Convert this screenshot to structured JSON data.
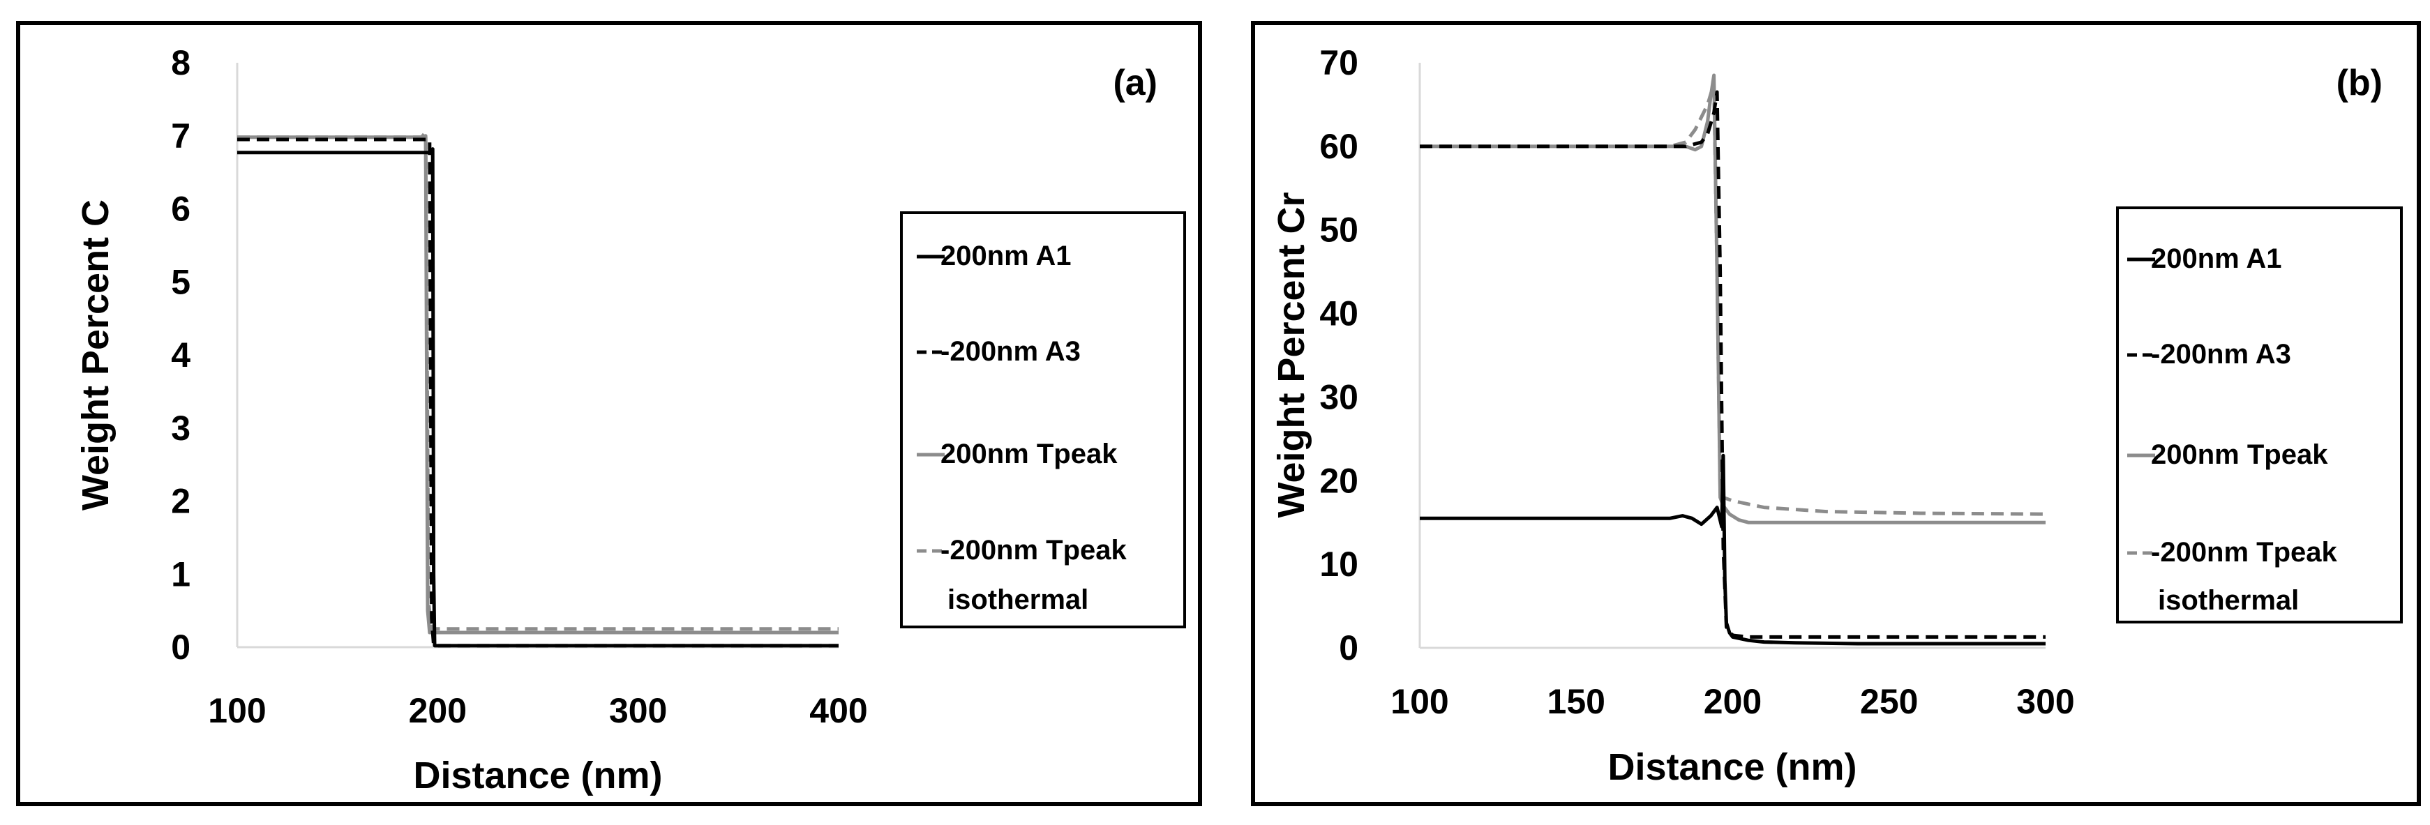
{
  "chart_data": [
    {
      "type": "line",
      "panel_label": "(a)",
      "xlabel": "Distance (nm)",
      "ylabel": "Weight Percent C",
      "xlim": [
        100,
        400
      ],
      "ylim": [
        0,
        8
      ],
      "xticks": [
        100,
        200,
        300,
        400
      ],
      "yticks": [
        0,
        1,
        2,
        3,
        4,
        5,
        6,
        7,
        8
      ],
      "grid": false,
      "legend": "right",
      "series": [
        {
          "name": "200nm A1",
          "style": "solid",
          "color": "#000000",
          "x": [
            100,
            197,
            197.5,
            198,
            198.5,
            400
          ],
          "y": [
            6.77,
            6.77,
            6.82,
            1.0,
            0.02,
            0.02
          ]
        },
        {
          "name": "-200nm A3",
          "style": "dashed",
          "color": "#000000",
          "x": [
            100,
            196,
            197,
            198,
            400
          ],
          "y": [
            6.95,
            6.95,
            0.4,
            0.02,
            0.02
          ]
        },
        {
          "name": "200nm Tpeak",
          "style": "solid",
          "color": "#8c8c8c",
          "x": [
            100,
            192,
            194,
            195,
            196,
            400
          ],
          "y": [
            6.98,
            6.98,
            7.0,
            0.5,
            0.2,
            0.2
          ]
        },
        {
          "name": "-200nm Tpeak isothermal",
          "style": "dashed",
          "color": "#8c8c8c",
          "x": [
            100,
            192,
            194,
            195.5,
            197,
            400
          ],
          "y": [
            6.98,
            6.98,
            7.05,
            0.6,
            0.25,
            0.25
          ]
        }
      ]
    },
    {
      "type": "line",
      "panel_label": "(b)",
      "xlabel": "Distance (nm)",
      "ylabel": "Weight Percent Cr",
      "xlim": [
        100,
        300
      ],
      "ylim": [
        0,
        70
      ],
      "xticks": [
        100,
        150,
        200,
        250,
        300
      ],
      "yticks": [
        0,
        10,
        20,
        30,
        40,
        50,
        60,
        70
      ],
      "grid": false,
      "legend": "right",
      "series": [
        {
          "name": "200nm A1",
          "style": "solid",
          "color": "#000000",
          "x": [
            100,
            180,
            184,
            187,
            190,
            193,
            195,
            196.5,
            197,
            197.5,
            198,
            199,
            200,
            205,
            210,
            220,
            240,
            300
          ],
          "y": [
            15.5,
            15.5,
            15.8,
            15.5,
            14.8,
            15.8,
            16.8,
            14.5,
            23.0,
            8.0,
            3.0,
            1.8,
            1.3,
            0.9,
            0.7,
            0.6,
            0.5,
            0.5
          ]
        },
        {
          "name": "-200nm A3",
          "style": "dashed",
          "color": "#000000",
          "x": [
            100,
            185,
            190,
            192,
            194,
            195,
            196,
            197,
            198,
            200,
            205,
            300
          ],
          "y": [
            60,
            60,
            60.5,
            61.5,
            64,
            66.5,
            45,
            12,
            2.5,
            1.5,
            1.3,
            1.3
          ]
        },
        {
          "name": "200nm Tpeak",
          "style": "solid",
          "color": "#8c8c8c",
          "x": [
            100,
            185,
            188,
            190,
            192,
            193,
            194,
            195,
            196,
            197,
            199,
            202,
            205,
            210,
            300
          ],
          "y": [
            60,
            60,
            59.6,
            60,
            63,
            66,
            68.5,
            45,
            18,
            17,
            16,
            15.3,
            15,
            15,
            15
          ]
        },
        {
          "name": "-200nm Tpeak isothermal",
          "style": "dashed",
          "color": "#8c8c8c",
          "x": [
            100,
            180,
            185,
            188,
            190,
            192,
            194,
            195,
            196,
            197,
            200,
            210,
            230,
            260,
            300
          ],
          "y": [
            60,
            60,
            60.5,
            62,
            63.5,
            65,
            67.5,
            45,
            19,
            18,
            17.6,
            16.8,
            16.3,
            16.1,
            16
          ]
        }
      ]
    }
  ]
}
